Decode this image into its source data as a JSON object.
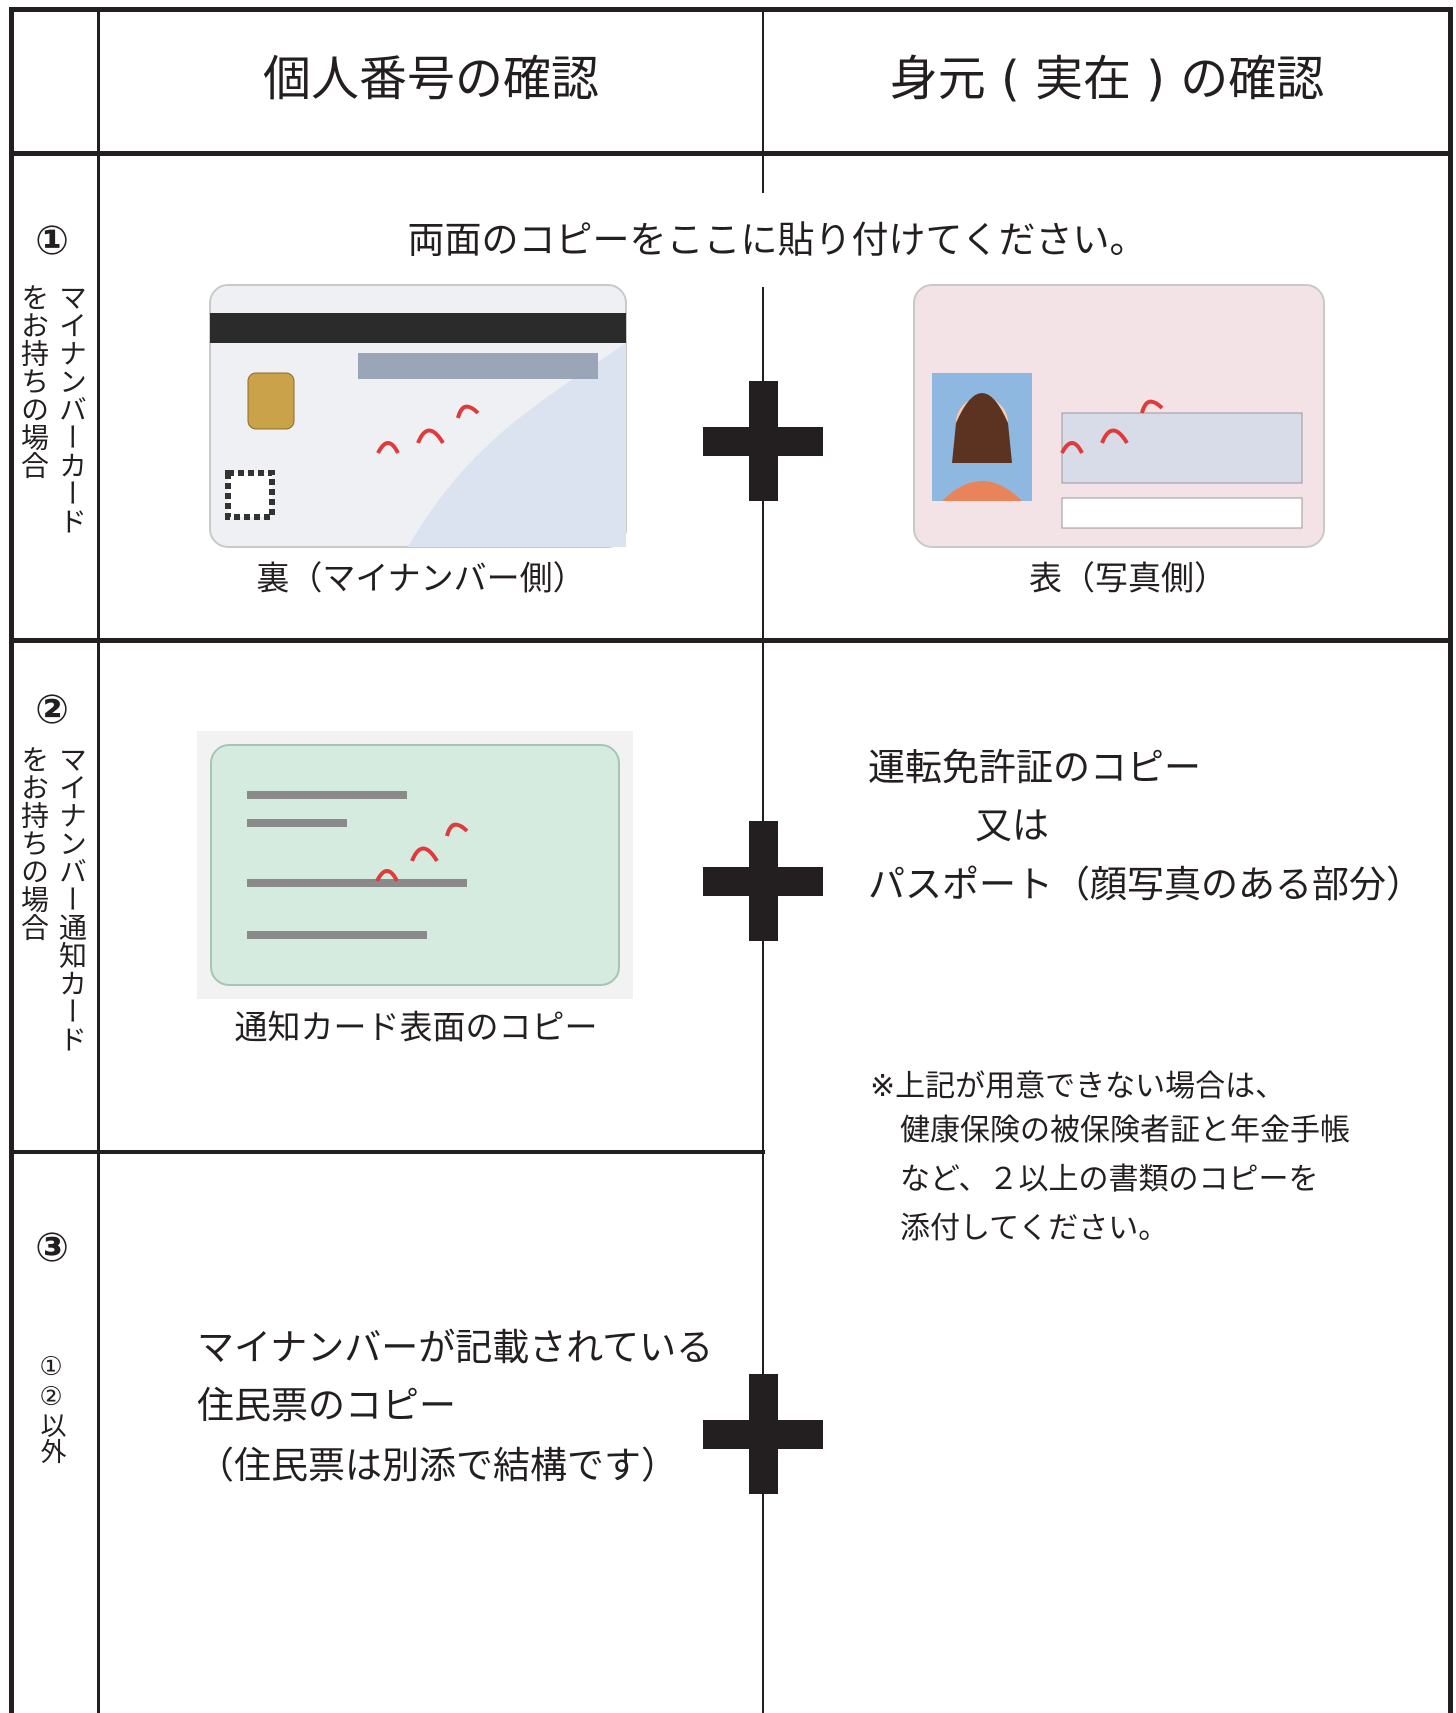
{
  "header": {
    "columns": [
      "個人番号の確認",
      "身元 ( 実在 ) の確認"
    ]
  },
  "rows": [
    {
      "number": "①",
      "label": [
        "マイナンバーカード",
        "をお持ちの場合"
      ],
      "instruction": "両面のコピーをここに貼り付けてください。",
      "captions": [
        "裏（マイナンバー側）",
        "表（写真側）"
      ]
    },
    {
      "number": "②",
      "label": [
        "マイナンバー通知カード",
        "をお持ちの場合"
      ],
      "caption": "通知カード表面のコピー",
      "identity": [
        "運転免許証のコピー",
        "又は",
        "パスポート（顔写真のある部分）"
      ],
      "note": [
        "※上記が用意できない場合は、",
        "健康保険の被保険者証と年金手帳",
        "など、２以上の書類のコピーを",
        "添付してください。"
      ]
    },
    {
      "number": "③",
      "label": "①②以外",
      "text": [
        "マイナンバーが記載されている",
        "住民票のコピー",
        "（住民票は別添で結構です）"
      ]
    }
  ]
}
